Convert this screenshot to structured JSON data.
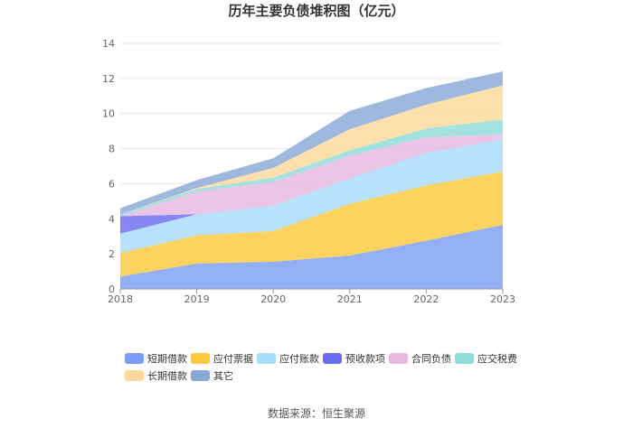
{
  "chart_data": {
    "type": "area",
    "stacked": true,
    "title": "历年主要负债堆积图（亿元）",
    "categories": [
      "2018",
      "2019",
      "2020",
      "2021",
      "2022",
      "2023"
    ],
    "ylim": [
      0,
      14
    ],
    "yticks": [
      0,
      2,
      4,
      6,
      8,
      10,
      12,
      14
    ],
    "grid": true,
    "legend_position": "bottom",
    "series": [
      {
        "name": "短期借款",
        "color": "#7b9ff5",
        "values": [
          0.7,
          1.45,
          1.55,
          1.9,
          2.75,
          3.65
        ]
      },
      {
        "name": "应付票据",
        "color": "#fcc93d",
        "values": [
          1.35,
          1.6,
          1.75,
          2.95,
          3.15,
          3.05
        ]
      },
      {
        "name": "应付账款",
        "color": "#a8dcfb",
        "values": [
          1.1,
          1.2,
          1.45,
          1.45,
          1.85,
          1.85
        ]
      },
      {
        "name": "预收款项",
        "color": "#6c6cf0",
        "values": [
          1.0,
          0.0,
          0.0,
          0.0,
          0.0,
          0.0
        ]
      },
      {
        "name": "合同负债",
        "color": "#e6b8e0",
        "values": [
          0.0,
          1.3,
          1.35,
          1.3,
          0.9,
          0.25
        ]
      },
      {
        "name": "应交税费",
        "color": "#8fdcd8",
        "values": [
          0.1,
          0.15,
          0.25,
          0.3,
          0.5,
          0.85
        ]
      },
      {
        "name": "长期借款",
        "color": "#fcd99a",
        "values": [
          0.0,
          0.05,
          0.55,
          1.2,
          1.35,
          1.95
        ]
      },
      {
        "name": "其它",
        "color": "#8aa8d6",
        "values": [
          0.35,
          0.45,
          0.55,
          1.05,
          0.95,
          0.8
        ]
      }
    ]
  },
  "source_text": "数据来源：恒生聚源"
}
